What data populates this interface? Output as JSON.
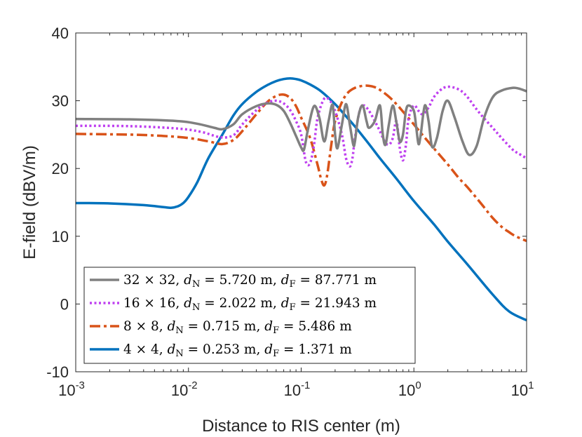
{
  "chart_data": {
    "type": "line",
    "title": "",
    "xlabel": "Distance to RIS center (m)",
    "ylabel": "E-field (dBV/m)",
    "xscale": "log",
    "xlim": [
      0.001,
      10
    ],
    "ylim": [
      -10,
      40
    ],
    "grid": false,
    "legend_position": "bottom-left",
    "xtick_labels": [
      {
        "value": 0.001,
        "base": "10",
        "exp": "-3"
      },
      {
        "value": 0.01,
        "base": "10",
        "exp": "-2"
      },
      {
        "value": 0.1,
        "base": "10",
        "exp": "-1"
      },
      {
        "value": 1,
        "base": "10",
        "exp": "0"
      },
      {
        "value": 10,
        "base": "10",
        "exp": "1"
      }
    ],
    "ytick_values": [
      -10,
      0,
      10,
      20,
      30,
      40
    ],
    "ytick_labels": [
      "-10",
      "0",
      "10",
      "20",
      "30",
      "40"
    ],
    "series": [
      {
        "name": "32x32",
        "color": "#808080",
        "style": "solid",
        "legend": {
          "size": "32 × 32, ",
          "dN_var": "d",
          "dN_sub": "N",
          "dN_val": " = 5.720 m, ",
          "dF_var": "d",
          "dF_sub": "F",
          "dF_val": " = 87.771 m"
        },
        "x": [
          0.001,
          0.003,
          0.008,
          0.012,
          0.017,
          0.02,
          0.025,
          0.03,
          0.04,
          0.05,
          0.06,
          0.07,
          0.08,
          0.09,
          0.1,
          0.106,
          0.115,
          0.13,
          0.145,
          0.16,
          0.175,
          0.19,
          0.2,
          0.21,
          0.23,
          0.25,
          0.27,
          0.29,
          0.3,
          0.32,
          0.35,
          0.38,
          0.4,
          0.45,
          0.5,
          0.53,
          0.56,
          0.6,
          0.65,
          0.7,
          0.75,
          0.8,
          0.85,
          0.9,
          1.0,
          1.05,
          1.1,
          1.15,
          1.25,
          1.35,
          1.45,
          1.6,
          1.8,
          2.0,
          2.3,
          2.7,
          3.1,
          3.6,
          4.2,
          5.0,
          6.0,
          7.5,
          8.5,
          10.0
        ],
        "y": [
          27.3,
          27.25,
          27.0,
          26.6,
          26.0,
          25.8,
          26.5,
          28.0,
          29.2,
          29.6,
          29.4,
          28.5,
          26.7,
          24.8,
          23.1,
          22.8,
          25.8,
          29.2,
          27.5,
          24.0,
          27.0,
          29.4,
          25.0,
          23.0,
          26.5,
          29.5,
          26.5,
          23.5,
          24.0,
          27.5,
          29.3,
          27.0,
          26.0,
          27.0,
          29.3,
          25.0,
          23.5,
          26.5,
          29.3,
          26.8,
          24.0,
          25.0,
          28.5,
          29.3,
          28.5,
          26.0,
          23.6,
          25.0,
          29.3,
          27.0,
          23.2,
          24.5,
          28.5,
          30.0,
          27.5,
          24.0,
          22.0,
          23.3,
          27.5,
          30.5,
          31.5,
          31.9,
          31.8,
          31.4
        ]
      },
      {
        "name": "16x16",
        "color": "#bf40f0",
        "style": "dotted",
        "legend": {
          "size": "16 × 16, ",
          "dN_var": "d",
          "dN_sub": "N",
          "dN_val": " = 2.022 m, ",
          "dF_var": "d",
          "dF_sub": "F",
          "dF_val": " = 21.943 m"
        },
        "x": [
          0.001,
          0.003,
          0.008,
          0.013,
          0.018,
          0.022,
          0.026,
          0.03,
          0.04,
          0.05,
          0.06,
          0.07,
          0.08,
          0.09,
          0.1,
          0.11,
          0.12,
          0.13,
          0.14,
          0.16,
          0.18,
          0.2,
          0.23,
          0.25,
          0.27,
          0.285,
          0.3,
          0.33,
          0.36,
          0.4,
          0.45,
          0.5,
          0.55,
          0.6,
          0.65,
          0.7,
          0.75,
          0.8,
          0.85,
          0.9,
          1.0,
          1.1,
          1.2,
          1.35,
          1.5,
          1.7,
          1.9,
          2.2,
          2.6,
          3.0,
          3.5,
          4.0,
          5.0,
          6.0,
          7.5,
          8.5,
          10.0
        ],
        "y": [
          26.3,
          26.25,
          25.9,
          25.4,
          24.7,
          24.6,
          25.1,
          26.5,
          28.6,
          29.7,
          30.0,
          29.6,
          28.6,
          27.0,
          25.0,
          21.0,
          20.8,
          23.5,
          27.5,
          30.3,
          30.0,
          28.5,
          25.0,
          21.5,
          20.3,
          21.5,
          24.5,
          28.5,
          29.3,
          28.5,
          27.0,
          25.5,
          24.0,
          23.5,
          24.5,
          27.0,
          23.0,
          21.2,
          23.5,
          27.5,
          29.3,
          28.5,
          28.0,
          29.0,
          30.5,
          31.5,
          32.0,
          32.0,
          31.5,
          30.5,
          29.0,
          27.8,
          26.0,
          24.5,
          22.8,
          22.2,
          21.5
        ]
      },
      {
        "name": "8x8",
        "color": "#d95319",
        "style": "dashdot",
        "legend": {
          "size": "8 × 8, ",
          "dN_var": "d",
          "dN_sub": "N",
          "dN_val": " = 0.715 m, ",
          "dF_var": "d",
          "dF_sub": "F",
          "dF_val": " = 5.486 m"
        },
        "x": [
          0.001,
          0.003,
          0.006,
          0.01,
          0.015,
          0.02,
          0.025,
          0.03,
          0.04,
          0.05,
          0.06,
          0.07,
          0.08,
          0.09,
          0.1,
          0.12,
          0.14,
          0.15,
          0.16,
          0.17,
          0.185,
          0.2,
          0.23,
          0.26,
          0.3,
          0.35,
          0.4,
          0.45,
          0.5,
          0.6,
          0.7,
          0.8,
          1.0,
          1.2,
          1.5,
          2.0,
          2.5,
          3.0,
          4.0,
          5.0,
          6.0,
          7.0,
          8.0,
          10.0
        ],
        "y": [
          25.1,
          25.0,
          24.8,
          24.5,
          24.0,
          23.6,
          24.2,
          25.5,
          28.0,
          29.8,
          30.7,
          30.9,
          30.4,
          29.2,
          27.5,
          24.5,
          20.5,
          18.5,
          17.5,
          19.0,
          23.5,
          27.0,
          29.8,
          31.2,
          31.9,
          32.2,
          32.2,
          32.0,
          31.6,
          30.6,
          29.5,
          28.4,
          26.5,
          24.9,
          23.0,
          20.6,
          18.6,
          17.2,
          14.7,
          12.7,
          11.4,
          10.6,
          10.0,
          9.3
        ]
      },
      {
        "name": "4x4",
        "color": "#0072bd",
        "style": "solid",
        "legend": {
          "size": "4 × 4, ",
          "dN_var": "d",
          "dN_sub": "N",
          "dN_val": " = 0.253 m, ",
          "dF_var": "d",
          "dF_sub": "F",
          "dF_val": " = 1.371 m"
        },
        "x": [
          0.001,
          0.002,
          0.004,
          0.006,
          0.007,
          0.008,
          0.009,
          0.01,
          0.012,
          0.015,
          0.02,
          0.025,
          0.03,
          0.04,
          0.05,
          0.06,
          0.07,
          0.08,
          0.09,
          0.1,
          0.12,
          0.15,
          0.2,
          0.25,
          0.3,
          0.4,
          0.5,
          0.7,
          1.0,
          1.5,
          2.0,
          3.0,
          5.0,
          7.0,
          10.0
        ],
        "y": [
          14.9,
          14.85,
          14.6,
          14.3,
          14.2,
          14.4,
          14.9,
          15.8,
          18.0,
          21.5,
          25.0,
          27.8,
          29.5,
          31.3,
          32.3,
          32.9,
          33.2,
          33.3,
          33.2,
          33.0,
          32.4,
          31.4,
          29.5,
          27.7,
          26.2,
          23.6,
          21.5,
          18.5,
          15.2,
          11.8,
          9.2,
          5.8,
          1.4,
          -1.1,
          -2.4
        ]
      }
    ]
  }
}
